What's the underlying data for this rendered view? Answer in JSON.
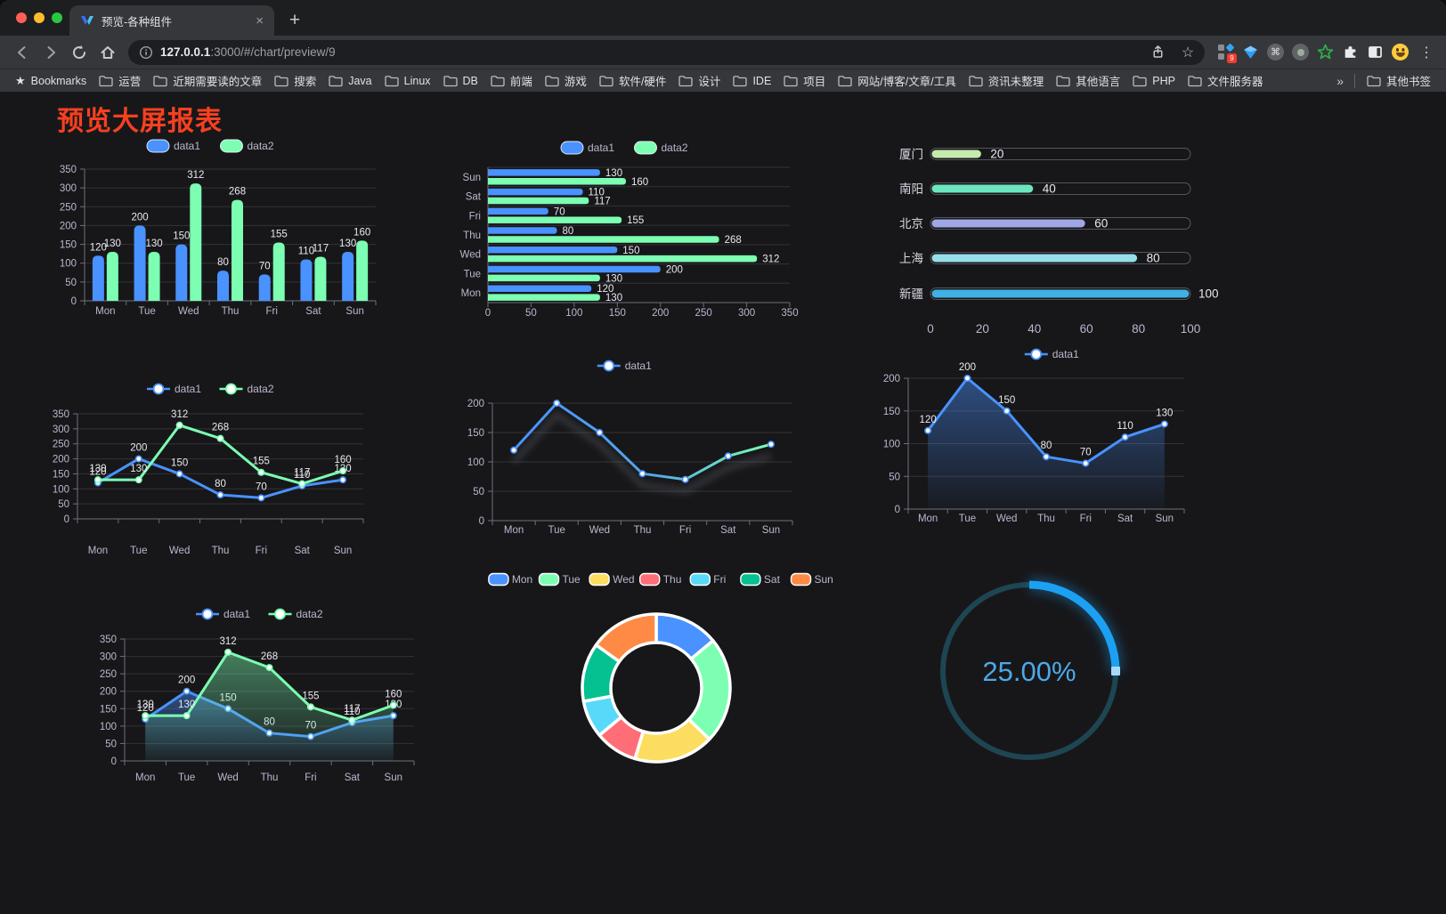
{
  "browser": {
    "tab": {
      "title": "预览-各种组件"
    },
    "url": {
      "host": "127.0.0.1",
      "rest": ":3000/#/chart/preview/9"
    },
    "extensions_badge": "9",
    "bookmarks_label": "Bookmarks",
    "bookmarks": [
      "运营",
      "近期需要读的文章",
      "搜索",
      "Java",
      "Linux",
      "DB",
      "前端",
      "游戏",
      "软件/硬件",
      "设计",
      "IDE",
      "项目",
      "网站/博客/文章/工具",
      "资讯未整理",
      "其他语言",
      "PHP",
      "文件服务器"
    ],
    "bookmarks_overflow": "»",
    "other_bookmarks": "其他书签"
  },
  "icons": {
    "close_tab": "×",
    "new_tab": "+",
    "bookmark_star": "★",
    "url_star": "☆",
    "menu_dots": "⋮",
    "command": "⌘"
  },
  "page": {
    "title": "预览大屏报表",
    "title_color": "#f7401f",
    "background": "#17171a"
  },
  "colors": {
    "axis_text": "#b9b8ce",
    "grid": "rgba(255,255,255,0.12)",
    "axis_line": "#6e7079",
    "value_label": "#e9e9ef",
    "series_blue": "#4992ff",
    "series_green": "#7cffb2"
  },
  "chart_data": [
    {
      "id": "bar-grouped",
      "type": "bar",
      "categories": [
        "Mon",
        "Tue",
        "Wed",
        "Thu",
        "Fri",
        "Sat",
        "Sun"
      ],
      "series": [
        {
          "name": "data1",
          "color": "#4992ff",
          "values": [
            120,
            200,
            150,
            80,
            70,
            110,
            130
          ]
        },
        {
          "name": "data2",
          "color": "#7cffb2",
          "values": [
            130,
            130,
            312,
            268,
            155,
            117,
            160
          ]
        }
      ],
      "ylim": [
        0,
        350
      ],
      "yticks": [
        0,
        50,
        100,
        150,
        200,
        250,
        300,
        350
      ],
      "legend": [
        "data1",
        "data2"
      ],
      "legend_position": "top",
      "grid": true,
      "labels": true
    },
    {
      "id": "bar-horizontal",
      "type": "bar-horizontal",
      "categories": [
        "Mon",
        "Tue",
        "Wed",
        "Thu",
        "Fri",
        "Sat",
        "Sun"
      ],
      "series": [
        {
          "name": "data1",
          "color": "#4992ff",
          "values": [
            120,
            200,
            150,
            80,
            70,
            110,
            130
          ]
        },
        {
          "name": "data2",
          "color": "#7cffb2",
          "values": [
            130,
            130,
            312,
            268,
            155,
            117,
            160
          ]
        }
      ],
      "xlim": [
        0,
        350
      ],
      "xticks": [
        0,
        50,
        100,
        150,
        200,
        250,
        300,
        350
      ],
      "legend": [
        "data1",
        "data2"
      ],
      "labels": true
    },
    {
      "id": "bar-progress",
      "type": "bar-progress",
      "categories": [
        "厦门",
        "南阳",
        "北京",
        "上海",
        "新疆"
      ],
      "values": [
        20,
        40,
        60,
        80,
        100
      ],
      "colors": [
        "#c4ebad",
        "#6be6c1",
        "#a0a7e6",
        "#96dee8",
        "#3fb1e3"
      ],
      "xlim": [
        0,
        100
      ],
      "xticks": [
        0,
        20,
        40,
        60,
        80,
        100
      ],
      "labels": true
    },
    {
      "id": "line-multi",
      "type": "line",
      "categories": [
        "Mon",
        "Tue",
        "Wed",
        "Thu",
        "Fri",
        "Sat",
        "Sun"
      ],
      "series": [
        {
          "name": "data1",
          "color": "#4992ff",
          "values": [
            120,
            200,
            150,
            80,
            70,
            110,
            130
          ]
        },
        {
          "name": "data2",
          "color": "#7cffb2",
          "values": [
            130,
            130,
            312,
            268,
            155,
            117,
            160
          ]
        }
      ],
      "ylim": [
        0,
        350
      ],
      "yticks": [
        0,
        50,
        100,
        150,
        200,
        250,
        300,
        350
      ],
      "legend": [
        "data1",
        "data2"
      ],
      "labels": true
    },
    {
      "id": "line-gradient",
      "type": "line",
      "categories": [
        "Mon",
        "Tue",
        "Wed",
        "Thu",
        "Fri",
        "Sat",
        "Sun"
      ],
      "series": [
        {
          "name": "data1",
          "gradient": [
            "#4992ff",
            "#7cffb2"
          ],
          "marker_color": "#4992ff",
          "values": [
            120,
            200,
            150,
            80,
            70,
            110,
            130
          ]
        }
      ],
      "ylim": [
        0,
        200
      ],
      "yticks": [
        0,
        50,
        100,
        150,
        200
      ],
      "legend": [
        "data1"
      ],
      "labels": false,
      "shadow": true
    },
    {
      "id": "line-area-blue",
      "type": "line",
      "categories": [
        "Mon",
        "Tue",
        "Wed",
        "Thu",
        "Fri",
        "Sat",
        "Sun"
      ],
      "series": [
        {
          "name": "data1",
          "color": "#4992ff",
          "area": true,
          "values": [
            120,
            200,
            150,
            80,
            70,
            110,
            130
          ]
        }
      ],
      "ylim": [
        0,
        200
      ],
      "yticks": [
        0,
        50,
        100,
        150,
        200
      ],
      "legend": [
        "data1"
      ],
      "labels": true
    },
    {
      "id": "line-area-multi",
      "type": "line",
      "categories": [
        "Mon",
        "Tue",
        "Wed",
        "Thu",
        "Fri",
        "Sat",
        "Sun"
      ],
      "series": [
        {
          "name": "data1",
          "color": "#4992ff",
          "area": true,
          "values": [
            120,
            200,
            150,
            80,
            70,
            110,
            130
          ]
        },
        {
          "name": "data2",
          "color": "#7cffb2",
          "area": true,
          "values": [
            130,
            130,
            312,
            268,
            155,
            117,
            160
          ]
        }
      ],
      "ylim": [
        0,
        350
      ],
      "yticks": [
        0,
        50,
        100,
        150,
        200,
        250,
        300,
        350
      ],
      "legend": [
        "data1",
        "data2"
      ],
      "labels": true
    },
    {
      "id": "pie-donut",
      "type": "pie",
      "categories": [
        "Mon",
        "Tue",
        "Wed",
        "Thu",
        "Fri",
        "Sat",
        "Sun"
      ],
      "values": [
        120,
        200,
        150,
        80,
        70,
        110,
        130
      ],
      "colors": [
        "#4992ff",
        "#7cffb2",
        "#fddd60",
        "#ff6e76",
        "#58d9f9",
        "#05c091",
        "#ff8a45"
      ],
      "legend": [
        "Mon",
        "Tue",
        "Wed",
        "Thu",
        "Fri",
        "Sat",
        "Sun"
      ],
      "border_color": "#ffffff"
    },
    {
      "id": "gauge-progress",
      "type": "gauge",
      "value": 25,
      "max": 100,
      "label": "25.00%",
      "color": "#1ca0f2",
      "track_color": "#1d4652",
      "text_color": "#4da9e8"
    }
  ]
}
